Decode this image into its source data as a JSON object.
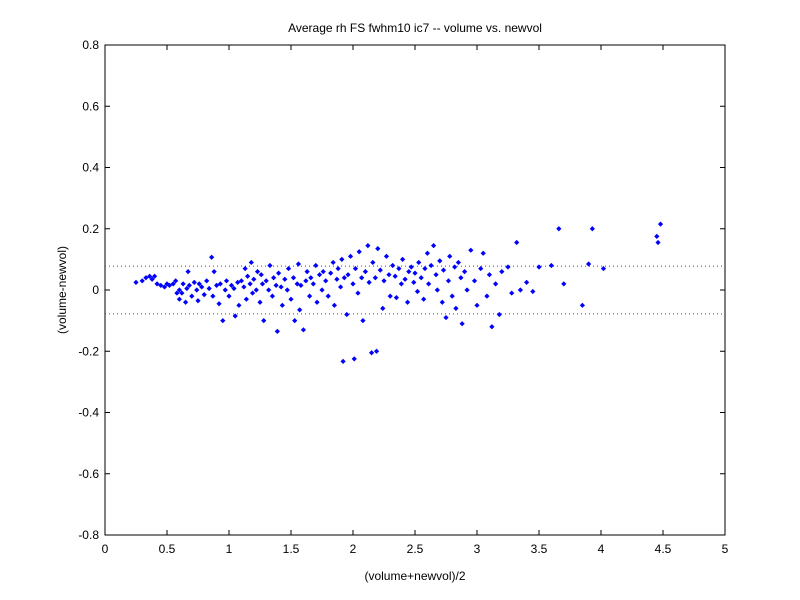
{
  "chart_data": {
    "type": "scatter",
    "title": "Average rh FS fwhm10 ic7 -- volume vs. newvol",
    "xlabel": "(volume+newvol)/2",
    "ylabel": "(volume-newvol)",
    "xlim": [
      0,
      5
    ],
    "ylim": [
      -0.8,
      0.8
    ],
    "xticks": [
      0,
      0.5,
      1,
      1.5,
      2,
      2.5,
      3,
      3.5,
      4,
      4.5,
      5
    ],
    "yticks": [
      -0.8,
      -0.6,
      -0.4,
      -0.2,
      0,
      0.2,
      0.4,
      0.6,
      0.8
    ],
    "xtick_labels": [
      "0",
      "0.5",
      "1",
      "1.5",
      "2",
      "2.5",
      "3",
      "3.5",
      "4",
      "4.5",
      "5"
    ],
    "ytick_labels": [
      "-0.8",
      "-0.6",
      "-0.4",
      "-0.2",
      "0",
      "0.2",
      "0.4",
      "0.6",
      "0.8"
    ],
    "grid": false,
    "reference_lines": [
      {
        "y": 0.078,
        "style": "dotted",
        "color": "#ff0000"
      },
      {
        "y": -0.078,
        "style": "dotted",
        "color": "#ff0000"
      }
    ],
    "series": [
      {
        "marker": "diamond",
        "color": "#0000ff",
        "points": [
          [
            0.25,
            0.025
          ],
          [
            0.3,
            0.03
          ],
          [
            0.33,
            0.04
          ],
          [
            0.36,
            0.045
          ],
          [
            0.38,
            0.035
          ],
          [
            0.4,
            0.045
          ],
          [
            0.42,
            0.02
          ],
          [
            0.45,
            0.015
          ],
          [
            0.48,
            0.01
          ],
          [
            0.5,
            0.02
          ],
          [
            0.52,
            0.015
          ],
          [
            0.55,
            0.02
          ],
          [
            0.57,
            0.03
          ],
          [
            0.58,
            -0.01
          ],
          [
            0.6,
            0.0
          ],
          [
            0.6,
            -0.03
          ],
          [
            0.62,
            -0.01
          ],
          [
            0.63,
            0.02
          ],
          [
            0.65,
            -0.04
          ],
          [
            0.66,
            0.005
          ],
          [
            0.67,
            0.06
          ],
          [
            0.68,
            0.015
          ],
          [
            0.7,
            -0.02
          ],
          [
            0.72,
            0.025
          ],
          [
            0.74,
            0.0
          ],
          [
            0.75,
            -0.035
          ],
          [
            0.76,
            0.02
          ],
          [
            0.78,
            0.01
          ],
          [
            0.8,
            -0.015
          ],
          [
            0.82,
            0.03
          ],
          [
            0.84,
            0.005
          ],
          [
            0.86,
            0.107
          ],
          [
            0.87,
            -0.02
          ],
          [
            0.88,
            0.06
          ],
          [
            0.9,
            0.015
          ],
          [
            0.92,
            -0.045
          ],
          [
            0.93,
            0.02
          ],
          [
            0.95,
            -0.1
          ],
          [
            0.97,
            0.0
          ],
          [
            0.98,
            0.03
          ],
          [
            1.0,
            -0.02
          ],
          [
            1.02,
            0.015
          ],
          [
            1.04,
            0.005
          ],
          [
            1.05,
            -0.085
          ],
          [
            1.07,
            0.025
          ],
          [
            1.08,
            -0.05
          ],
          [
            1.1,
            0.03
          ],
          [
            1.12,
            0.01
          ],
          [
            1.13,
            0.07
          ],
          [
            1.14,
            -0.03
          ],
          [
            1.15,
            0.045
          ],
          [
            1.17,
            0.02
          ],
          [
            1.18,
            0.09
          ],
          [
            1.19,
            -0.01
          ],
          [
            1.2,
            0.035
          ],
          [
            1.22,
            0.0
          ],
          [
            1.23,
            0.06
          ],
          [
            1.25,
            -0.04
          ],
          [
            1.26,
            0.05
          ],
          [
            1.27,
            0.02
          ],
          [
            1.28,
            -0.1
          ],
          [
            1.3,
            0.03
          ],
          [
            1.32,
            0.0
          ],
          [
            1.33,
            0.08
          ],
          [
            1.35,
            -0.02
          ],
          [
            1.36,
            0.04
          ],
          [
            1.38,
            0.015
          ],
          [
            1.39,
            -0.135
          ],
          [
            1.4,
            0.055
          ],
          [
            1.42,
            0.01
          ],
          [
            1.43,
            -0.05
          ],
          [
            1.45,
            0.035
          ],
          [
            1.47,
            0.0
          ],
          [
            1.48,
            0.07
          ],
          [
            1.5,
            -0.03
          ],
          [
            1.52,
            0.04
          ],
          [
            1.53,
            -0.1
          ],
          [
            1.55,
            0.02
          ],
          [
            1.56,
            0.085
          ],
          [
            1.57,
            -0.065
          ],
          [
            1.58,
            0.015
          ],
          [
            1.6,
            -0.13
          ],
          [
            1.62,
            0.03
          ],
          [
            1.63,
            0.06
          ],
          [
            1.65,
            -0.02
          ],
          [
            1.66,
            0.04
          ],
          [
            1.68,
            0.02
          ],
          [
            1.7,
            0.08
          ],
          [
            1.71,
            -0.04
          ],
          [
            1.73,
            0.05
          ],
          [
            1.75,
            0.0
          ],
          [
            1.76,
            0.06
          ],
          [
            1.78,
            0.03
          ],
          [
            1.8,
            -0.02
          ],
          [
            1.82,
            0.055
          ],
          [
            1.84,
            0.09
          ],
          [
            1.85,
            -0.05
          ],
          [
            1.87,
            0.035
          ],
          [
            1.88,
            0.07
          ],
          [
            1.9,
            0.01
          ],
          [
            1.91,
            0.1
          ],
          [
            1.92,
            -0.233
          ],
          [
            1.93,
            0.04
          ],
          [
            1.95,
            -0.08
          ],
          [
            1.96,
            0.05
          ],
          [
            1.98,
            0.11
          ],
          [
            2.0,
            0.02
          ],
          [
            2.01,
            -0.225
          ],
          [
            2.02,
            0.07
          ],
          [
            2.04,
            -0.01
          ],
          [
            2.05,
            0.125
          ],
          [
            2.07,
            0.04
          ],
          [
            2.08,
            -0.1
          ],
          [
            2.1,
            0.06
          ],
          [
            2.12,
            0.145
          ],
          [
            2.13,
            0.025
          ],
          [
            2.15,
            -0.205
          ],
          [
            2.16,
            0.09
          ],
          [
            2.18,
            0.04
          ],
          [
            2.19,
            -0.2
          ],
          [
            2.2,
            0.135
          ],
          [
            2.22,
            0.065
          ],
          [
            2.24,
            -0.06
          ],
          [
            2.25,
            0.03
          ],
          [
            2.27,
            0.11
          ],
          [
            2.29,
            0.05
          ],
          [
            2.3,
            -0.02
          ],
          [
            2.32,
            0.08
          ],
          [
            2.34,
            0.045
          ],
          [
            2.35,
            -0.025
          ],
          [
            2.37,
            0.07
          ],
          [
            2.39,
            0.02
          ],
          [
            2.4,
            0.1
          ],
          [
            2.42,
            0.035
          ],
          [
            2.44,
            -0.04
          ],
          [
            2.45,
            0.06
          ],
          [
            2.47,
            0.075
          ],
          [
            2.49,
            0.025
          ],
          [
            2.5,
            0.055
          ],
          [
            2.52,
            -0.005
          ],
          [
            2.53,
            0.09
          ],
          [
            2.55,
            0.04
          ],
          [
            2.57,
            -0.03
          ],
          [
            2.58,
            0.07
          ],
          [
            2.6,
            0.12
          ],
          [
            2.61,
            0.02
          ],
          [
            2.63,
            0.08
          ],
          [
            2.65,
            0.145
          ],
          [
            2.67,
            0.05
          ],
          [
            2.68,
            0.0
          ],
          [
            2.7,
            0.095
          ],
          [
            2.72,
            -0.04
          ],
          [
            2.73,
            0.065
          ],
          [
            2.75,
            -0.09
          ],
          [
            2.77,
            0.03
          ],
          [
            2.78,
            0.11
          ],
          [
            2.8,
            -0.02
          ],
          [
            2.82,
            0.075
          ],
          [
            2.83,
            -0.06
          ],
          [
            2.85,
            0.09
          ],
          [
            2.87,
            0.04
          ],
          [
            2.88,
            -0.11
          ],
          [
            2.9,
            0.06
          ],
          [
            2.92,
            0.0
          ],
          [
            2.95,
            0.13
          ],
          [
            2.98,
            0.03
          ],
          [
            3.0,
            -0.05
          ],
          [
            3.03,
            0.07
          ],
          [
            3.05,
            0.12
          ],
          [
            3.08,
            -0.02
          ],
          [
            3.1,
            0.05
          ],
          [
            3.12,
            -0.12
          ],
          [
            3.15,
            0.02
          ],
          [
            3.18,
            -0.08
          ],
          [
            3.2,
            0.06
          ],
          [
            3.25,
            0.075
          ],
          [
            3.28,
            -0.01
          ],
          [
            3.32,
            0.155
          ],
          [
            3.35,
            0.0
          ],
          [
            3.4,
            0.025
          ],
          [
            3.45,
            -0.005
          ],
          [
            3.5,
            0.075
          ],
          [
            3.6,
            0.08
          ],
          [
            3.66,
            0.2
          ],
          [
            3.7,
            0.02
          ],
          [
            3.85,
            -0.05
          ],
          [
            3.9,
            0.085
          ],
          [
            3.93,
            0.2
          ],
          [
            4.02,
            0.07
          ],
          [
            4.45,
            0.175
          ],
          [
            4.46,
            0.155
          ],
          [
            4.48,
            0.215
          ]
        ]
      }
    ]
  }
}
